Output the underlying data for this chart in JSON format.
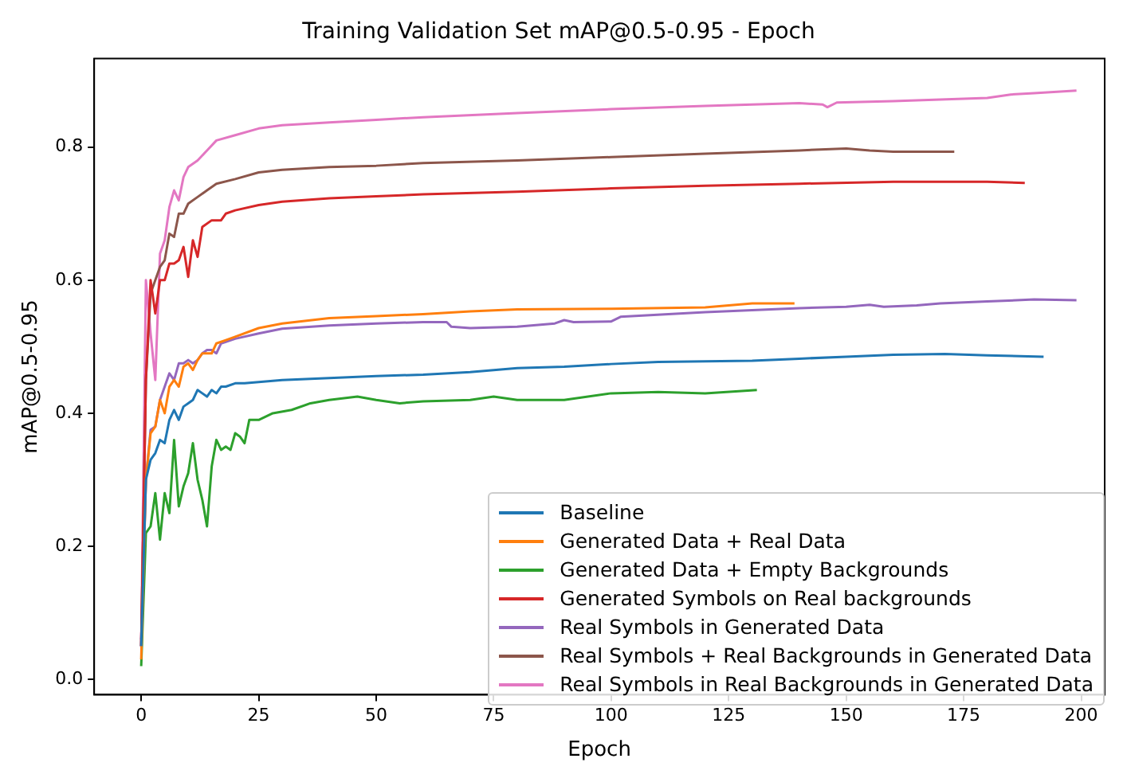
{
  "chart_data": {
    "type": "line",
    "title": "Training Validation Set mAP@0.5-0.95 - Epoch",
    "xlabel": "Epoch",
    "ylabel": "mAP@0.5-0.95",
    "xlim": [
      -10,
      205
    ],
    "xticks": [
      0,
      25,
      50,
      75,
      100,
      125,
      150,
      175,
      200
    ],
    "ylim": [
      -0.023,
      0.933
    ],
    "yticks": [
      {
        "value": 0,
        "label": "0.0"
      },
      {
        "value": 0.2,
        "label": "0.2"
      },
      {
        "value": 0.4,
        "label": "0.4"
      },
      {
        "value": 0.6,
        "label": "0.6"
      },
      {
        "value": 0.8,
        "label": "0.8"
      }
    ],
    "grid": false,
    "legend": "bottom right",
    "marker": "none",
    "line_style": "solid",
    "series": [
      {
        "name": "Baseline",
        "color": "#1f77b4",
        "x": [
          0,
          1,
          2,
          3,
          4,
          5,
          6,
          7,
          8,
          9,
          10,
          11,
          12,
          13,
          14,
          15,
          16,
          17,
          18,
          20,
          22,
          25,
          30,
          40,
          50,
          60,
          70,
          80,
          90,
          100,
          110,
          120,
          130,
          140,
          150,
          160,
          171,
          180,
          192
        ],
        "values": [
          0.05,
          0.3,
          0.33,
          0.34,
          0.36,
          0.355,
          0.39,
          0.405,
          0.39,
          0.41,
          0.415,
          0.42,
          0.435,
          0.43,
          0.425,
          0.435,
          0.43,
          0.44,
          0.44,
          0.445,
          0.445,
          0.447,
          0.45,
          0.453,
          0.456,
          0.458,
          0.462,
          0.468,
          0.47,
          0.474,
          0.477,
          0.478,
          0.479,
          0.482,
          0.485,
          0.488,
          0.489,
          0.487,
          0.485
        ]
      },
      {
        "name": "Generated Data + Real Data",
        "color": "#ff7f0e",
        "x": [
          0,
          1,
          2,
          3,
          4,
          5,
          6,
          7,
          8,
          9,
          10,
          11,
          12,
          13,
          15,
          16,
          18,
          20,
          25,
          30,
          40,
          50,
          60,
          70,
          80,
          100,
          120,
          130,
          139
        ],
        "values": [
          0.03,
          0.3,
          0.37,
          0.38,
          0.42,
          0.4,
          0.44,
          0.45,
          0.44,
          0.47,
          0.475,
          0.465,
          0.48,
          0.49,
          0.49,
          0.505,
          0.51,
          0.515,
          0.528,
          0.535,
          0.543,
          0.546,
          0.549,
          0.553,
          0.556,
          0.557,
          0.559,
          0.565,
          0.565
        ]
      },
      {
        "name": "Generated Data + Empty Backgrounds",
        "color": "#2ca02c",
        "x": [
          0,
          1,
          2,
          3,
          4,
          5,
          6,
          7,
          8,
          9,
          10,
          11,
          12,
          13,
          14,
          15,
          16,
          17,
          18,
          19,
          20,
          21,
          22,
          23,
          25,
          28,
          32,
          36,
          40,
          46,
          50,
          55,
          60,
          70,
          75,
          80,
          90,
          100,
          110,
          120,
          131
        ],
        "values": [
          0.02,
          0.22,
          0.23,
          0.28,
          0.21,
          0.28,
          0.25,
          0.36,
          0.26,
          0.29,
          0.31,
          0.355,
          0.3,
          0.27,
          0.23,
          0.32,
          0.36,
          0.345,
          0.35,
          0.345,
          0.37,
          0.365,
          0.355,
          0.39,
          0.39,
          0.4,
          0.405,
          0.415,
          0.42,
          0.425,
          0.42,
          0.415,
          0.418,
          0.42,
          0.425,
          0.42,
          0.42,
          0.43,
          0.432,
          0.43,
          0.435
        ]
      },
      {
        "name": "Generated Symbols on Real backgrounds",
        "color": "#d62728",
        "x": [
          0,
          1,
          2,
          3,
          4,
          5,
          6,
          7,
          8,
          9,
          10,
          11,
          12,
          13,
          15,
          17,
          18,
          20,
          25,
          30,
          40,
          50,
          60,
          80,
          100,
          120,
          140,
          160,
          180,
          188
        ],
        "values": [
          0.05,
          0.45,
          0.6,
          0.55,
          0.6,
          0.6,
          0.625,
          0.625,
          0.63,
          0.65,
          0.605,
          0.66,
          0.635,
          0.68,
          0.69,
          0.69,
          0.7,
          0.705,
          0.713,
          0.718,
          0.723,
          0.726,
          0.729,
          0.733,
          0.738,
          0.742,
          0.745,
          0.748,
          0.748,
          0.746
        ]
      },
      {
        "name": "Real Symbols in Generated Data",
        "color": "#9467bd",
        "x": [
          0,
          1,
          2,
          3,
          4,
          5,
          6,
          7,
          8,
          9,
          10,
          11,
          12,
          13,
          14,
          15,
          16,
          17,
          20,
          25,
          30,
          40,
          50,
          60,
          65,
          66,
          70,
          80,
          88,
          90,
          92,
          100,
          102,
          120,
          140,
          150,
          155,
          158,
          165,
          170,
          180,
          190,
          199
        ],
        "values": [
          0.06,
          0.3,
          0.375,
          0.38,
          0.42,
          0.44,
          0.46,
          0.45,
          0.475,
          0.475,
          0.48,
          0.475,
          0.48,
          0.49,
          0.495,
          0.495,
          0.49,
          0.505,
          0.512,
          0.52,
          0.527,
          0.532,
          0.535,
          0.537,
          0.537,
          0.53,
          0.528,
          0.53,
          0.535,
          0.54,
          0.537,
          0.538,
          0.545,
          0.552,
          0.558,
          0.56,
          0.563,
          0.56,
          0.562,
          0.565,
          0.568,
          0.571,
          0.57
        ]
      },
      {
        "name": "Real Symbols + Real Backgrounds in Generated Data",
        "color": "#8c564b",
        "x": [
          0,
          1,
          2,
          3,
          4,
          5,
          6,
          7,
          8,
          9,
          10,
          12,
          14,
          16,
          20,
          25,
          30,
          40,
          50,
          60,
          80,
          100,
          120,
          140,
          150,
          155,
          160,
          173
        ],
        "values": [
          0.05,
          0.45,
          0.58,
          0.6,
          0.62,
          0.63,
          0.67,
          0.665,
          0.7,
          0.7,
          0.715,
          0.725,
          0.735,
          0.745,
          0.752,
          0.762,
          0.766,
          0.77,
          0.772,
          0.776,
          0.78,
          0.785,
          0.79,
          0.795,
          0.798,
          0.795,
          0.793,
          0.793
        ]
      },
      {
        "name": "Real Symbols in Real Backgrounds in Generated Data",
        "color": "#e377c2",
        "x": [
          0,
          1,
          2,
          3,
          4,
          5,
          6,
          7,
          8,
          9,
          10,
          12,
          14,
          16,
          20,
          25,
          30,
          40,
          50,
          60,
          80,
          100,
          120,
          140,
          145,
          146,
          148,
          160,
          180,
          185,
          190,
          199
        ],
        "values": [
          0.05,
          0.6,
          0.52,
          0.45,
          0.64,
          0.66,
          0.71,
          0.735,
          0.72,
          0.755,
          0.77,
          0.78,
          0.795,
          0.81,
          0.818,
          0.828,
          0.833,
          0.837,
          0.841,
          0.845,
          0.851,
          0.857,
          0.862,
          0.866,
          0.864,
          0.86,
          0.867,
          0.869,
          0.874,
          0.879,
          0.881,
          0.885
        ]
      }
    ]
  }
}
